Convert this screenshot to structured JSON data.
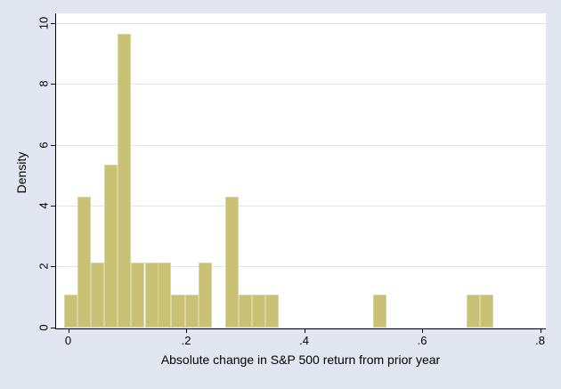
{
  "chart_data": {
    "type": "bar",
    "subtype": "histogram",
    "title": "",
    "xlabel": "Absolute change in S&P 500 return from prior year",
    "ylabel": "Density",
    "xlim": [
      -0.02,
      0.81
    ],
    "ylim": [
      0,
      10
    ],
    "grid": true,
    "legend": "none",
    "bin_width": 0.0228,
    "bins": [
      {
        "x": -0.007,
        "density": 1.07
      },
      {
        "x": 0.016,
        "density": 4.28
      },
      {
        "x": 0.039,
        "density": 2.14
      },
      {
        "x": 0.061,
        "density": 5.36
      },
      {
        "x": 0.084,
        "density": 9.64
      },
      {
        "x": 0.107,
        "density": 2.14
      },
      {
        "x": 0.13,
        "density": 2.14
      },
      {
        "x": 0.152,
        "density": 2.14
      },
      {
        "x": 0.175,
        "density": 1.07
      },
      {
        "x": 0.198,
        "density": 1.07
      },
      {
        "x": 0.221,
        "density": 2.14
      },
      {
        "x": 0.266,
        "density": 4.28
      },
      {
        "x": 0.289,
        "density": 1.07
      },
      {
        "x": 0.312,
        "density": 1.07
      },
      {
        "x": 0.334,
        "density": 1.07
      },
      {
        "x": 0.517,
        "density": 1.07
      },
      {
        "x": 0.675,
        "density": 1.07
      },
      {
        "x": 0.698,
        "density": 1.07
      }
    ],
    "xticks": {
      "values": [
        0,
        0.2,
        0.4,
        0.6,
        0.8
      ],
      "labels": [
        "0",
        ".2",
        ".4",
        ".6",
        ".8"
      ]
    },
    "yticks": {
      "values": [
        0,
        2,
        4,
        6,
        8,
        10
      ],
      "labels": [
        "0",
        "2",
        "4",
        "6",
        "8",
        "10"
      ]
    },
    "colors": {
      "bar_fill": "#c9c173",
      "bar_outline": "#d9d4a4",
      "figure_background": "#e1e6f0",
      "plot_background": "#ffffff",
      "gridline": "#dce5ef",
      "axis_line": "#000000",
      "text": "#000000"
    }
  }
}
